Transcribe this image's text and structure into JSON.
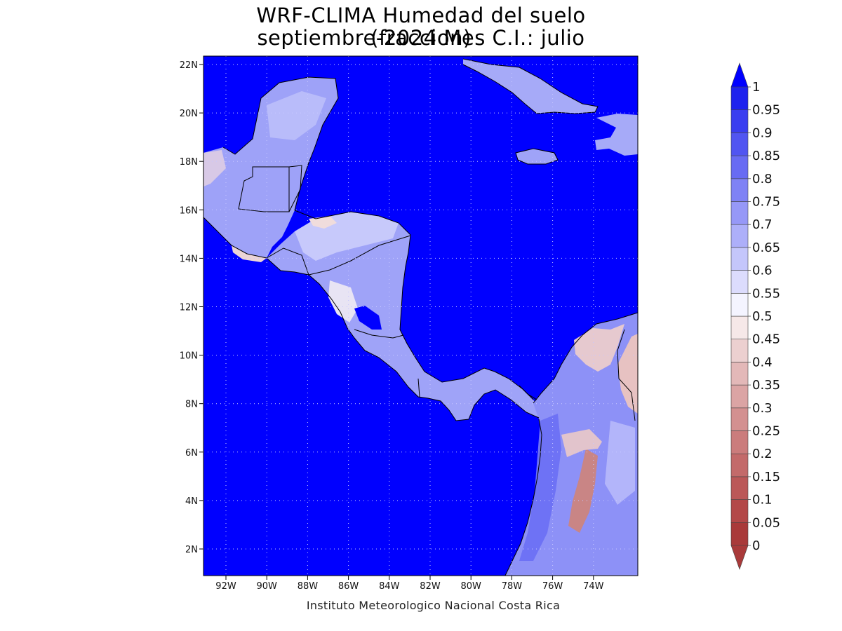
{
  "title": {
    "line1": "WRF-CLIMA Humedad del suelo (fraccion)",
    "line2": "septiembre-2024 Mes C.I.: julio"
  },
  "credit": "Instituto Meteorologico Nacional Costa Rica",
  "axes": {
    "lat_labels": [
      "2N",
      "4N",
      "6N",
      "8N",
      "10N",
      "12N",
      "14N",
      "16N",
      "18N",
      "20N",
      "22N"
    ],
    "lon_labels": [
      "92W",
      "90W",
      "88W",
      "86W",
      "84W",
      "82W",
      "80W",
      "78W",
      "76W",
      "74W"
    ]
  },
  "colorbar": {
    "labels": [
      "0",
      "0.05",
      "0.1",
      "0.15",
      "0.2",
      "0.25",
      "0.3",
      "0.35",
      "0.4",
      "0.45",
      "0.5",
      "0.55",
      "0.6",
      "0.65",
      "0.7",
      "0.75",
      "0.8",
      "0.85",
      "0.9",
      "0.95",
      "1"
    ],
    "colors": [
      "#a93a3a",
      "#b34848",
      "#bb5858",
      "#c36a6a",
      "#cb7c7c",
      "#d39090",
      "#dba4a4",
      "#e3b8b8",
      "#ecd0d0",
      "#f6e8e8",
      "#f4f4ff",
      "#dcdcfd",
      "#c4c6fb",
      "#adaff9",
      "#9698f7",
      "#7f82f5",
      "#686bf3",
      "#5155f1",
      "#3a3ef0",
      "#1e22ee"
    ],
    "over_color": "#0000ff",
    "under_color": "#a93a3a"
  },
  "ocean_color": "#0000ff"
}
